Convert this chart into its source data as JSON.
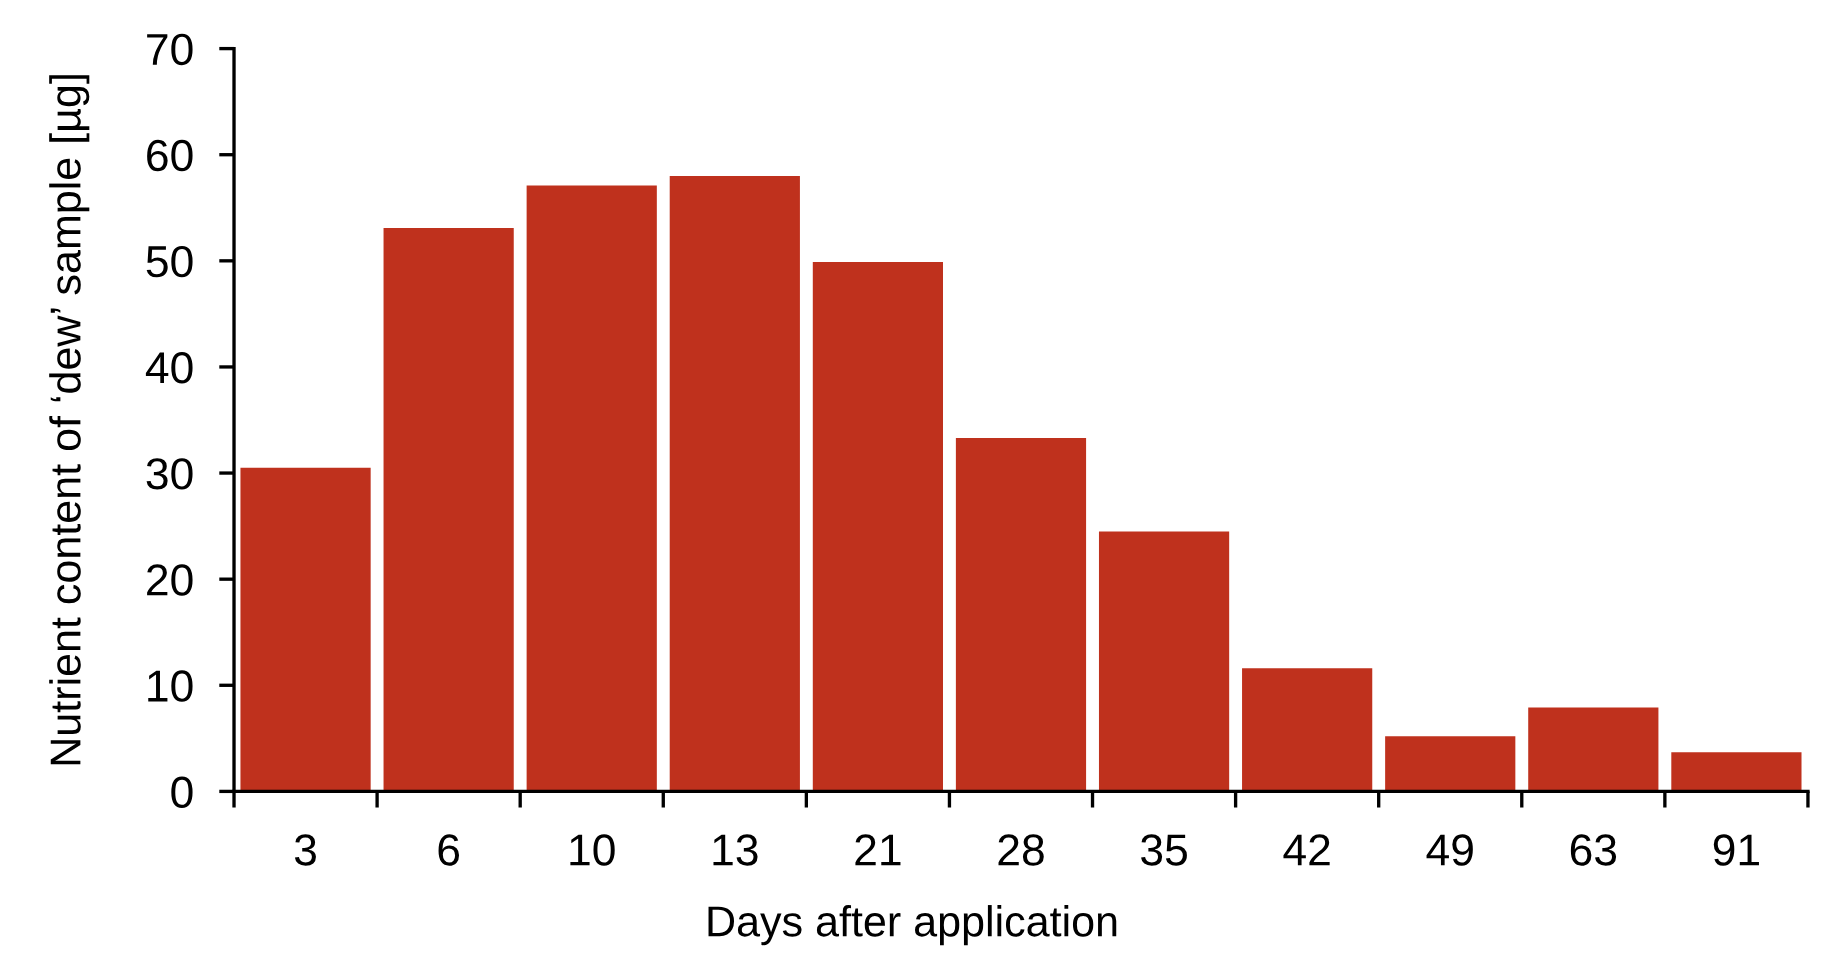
{
  "chart_data": {
    "type": "bar",
    "xlabel": "Days after application",
    "ylabel": "Nutrient content of ‘dew’ sample [µg]",
    "categories": [
      "3",
      "6",
      "10",
      "13",
      "21",
      "28",
      "35",
      "42",
      "49",
      "63",
      "91"
    ],
    "values": [
      30.5,
      53.1,
      57.1,
      58.0,
      49.9,
      33.3,
      24.5,
      11.6,
      5.2,
      7.9,
      3.7
    ],
    "color": "#bf311d",
    "ylim": [
      0,
      70
    ],
    "yticks": [
      0,
      10,
      20,
      30,
      40,
      50,
      60,
      70
    ],
    "grid": false
  }
}
